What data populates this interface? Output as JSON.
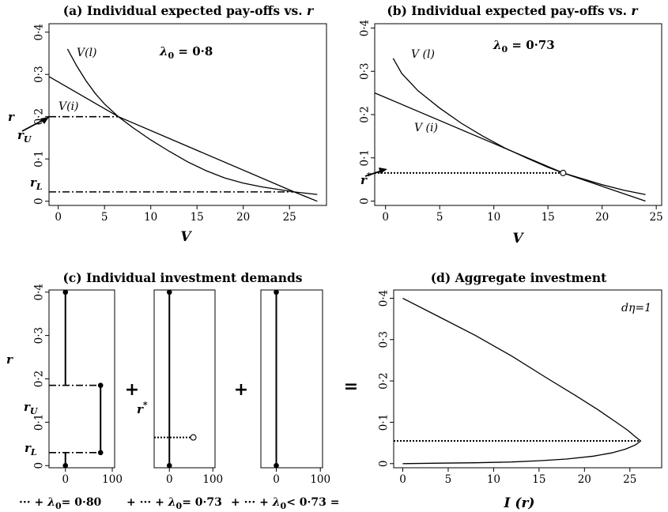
{
  "chart_data": [
    {
      "panel": "a",
      "type": "line",
      "title_prefix": "(a) Individual expected pay-offs vs.",
      "title_var": "r",
      "xlabel": "V",
      "xlim": [
        -1,
        29
      ],
      "ylim": [
        -0.01,
        0.42
      ],
      "xticks": [
        "0",
        "5",
        "10",
        "15",
        "20",
        "25"
      ],
      "yticks": [
        "0",
        "0·1",
        "0·2",
        "0·3",
        "0·4"
      ],
      "series": [
        {
          "name": "V(l)",
          "x": [
            1,
            2,
            3,
            4,
            5,
            6.5,
            8,
            10,
            12,
            14,
            16,
            18,
            20,
            22,
            25.5,
            28
          ],
          "y": [
            0.36,
            0.32,
            0.285,
            0.255,
            0.23,
            0.2,
            0.175,
            0.145,
            0.118,
            0.093,
            0.072,
            0.055,
            0.043,
            0.034,
            0.022,
            0.016
          ]
        },
        {
          "name": "V(i)",
          "x": [
            -1,
            6.5,
            25.5,
            28
          ],
          "y": [
            0.295,
            0.2,
            0.022,
            0.0
          ]
        }
      ],
      "param_symbol": "λ",
      "param_sub": "0",
      "param_value": " = 0·8",
      "labels": {
        "r": "r",
        "rU": "r",
        "rU_sub": "U",
        "rL": "r",
        "rL_sub": "L"
      },
      "levels": {
        "rU": 0.2,
        "rU_x": 6.5,
        "rL": 0.022,
        "rL_x": 25.5
      }
    },
    {
      "panel": "b",
      "type": "line",
      "title_prefix": "(b) Individual expected pay-offs vs.",
      "title_var": "r",
      "xlabel": "V",
      "xlim": [
        -1,
        25.5
      ],
      "ylim": [
        -0.01,
        0.41
      ],
      "xticks": [
        "0",
        "5",
        "10",
        "15",
        "20",
        "25"
      ],
      "yticks": [
        "0",
        "0·1",
        "0·2",
        "0·3",
        "0·4"
      ],
      "series": [
        {
          "name": "V (l)",
          "x": [
            0.7,
            1.5,
            3,
            5,
            7,
            9,
            11,
            13,
            15,
            16.4,
            18,
            20,
            22,
            24
          ],
          "y": [
            0.33,
            0.295,
            0.255,
            0.215,
            0.18,
            0.15,
            0.123,
            0.1,
            0.078,
            0.065,
            0.053,
            0.038,
            0.025,
            0.015
          ]
        },
        {
          "name": "V (i)",
          "x": [
            -1,
            16.4,
            24
          ],
          "y": [
            0.25,
            0.065,
            0.0
          ]
        }
      ],
      "param_symbol": "λ",
      "param_sub": "0",
      "param_value": " = 0·73",
      "labels": {
        "rstar": "r",
        "rstar_sup": "*"
      },
      "levels": {
        "rstar": 0.065,
        "rstar_x": 16.4
      }
    },
    {
      "panel": "c",
      "type": "line",
      "title": "(c) Individual investment demands",
      "ylabel": "r",
      "xlim": [
        -35,
        105
      ],
      "ylim": [
        -0.005,
        0.405
      ],
      "xticks": [
        "0",
        "100"
      ],
      "yticks": [
        "0",
        "0·1",
        "0·2",
        "0·3",
        "0·4"
      ],
      "sub_panels": [
        {
          "rU": 0.185,
          "rL": 0.03,
          "demand_high": 75
        },
        {
          "rstar": 0.065,
          "demand_high": 55
        },
        {
          "demand": 0
        }
      ],
      "labels": {
        "r": "r",
        "rU": "r",
        "rU_sub": "U",
        "rL": "r",
        "rL_sub": "L",
        "rstar": "r",
        "rstar_sup": "*"
      },
      "operators": [
        "+",
        "+",
        "="
      ],
      "bottom_labels": [
        {
          "prefix": "··· + ",
          "sym": "λ",
          "sub": "0",
          "value": "= 0·80"
        },
        {
          "prefix": "+ ··· +  ",
          "sym": "λ",
          "sub": "0",
          "value": "= 0·73"
        },
        {
          "prefix": "+ ··· + ",
          "sym": "λ",
          "sub": "0",
          "value": "< 0·73  ="
        }
      ]
    },
    {
      "panel": "d",
      "type": "line",
      "title": "(d) Aggregate investment",
      "xlabel": "I (r)",
      "xlim": [
        -1,
        28.5
      ],
      "ylim": [
        -0.01,
        0.42
      ],
      "xticks": [
        "0",
        "5",
        "10",
        "15",
        "20",
        "25"
      ],
      "yticks": [
        "0",
        "0·1",
        "0·2",
        "0·3",
        "0·4"
      ],
      "annotation": "dη=1",
      "series": [
        {
          "name": "upper",
          "x": [
            0,
            4,
            8,
            12,
            16,
            19,
            21.5,
            23.5,
            24.8,
            25.6,
            26,
            26.2
          ],
          "y": [
            0.4,
            0.355,
            0.31,
            0.26,
            0.205,
            0.165,
            0.13,
            0.1,
            0.08,
            0.065,
            0.058,
            0.055
          ]
        },
        {
          "name": "lower",
          "x": [
            26.2,
            25.6,
            24.5,
            23,
            21,
            18,
            15,
            12,
            8,
            4,
            0
          ],
          "y": [
            0.055,
            0.045,
            0.035,
            0.026,
            0.018,
            0.011,
            0.007,
            0.004,
            0.002,
            0.001,
            0.0
          ]
        }
      ],
      "level": 0.055
    }
  ]
}
